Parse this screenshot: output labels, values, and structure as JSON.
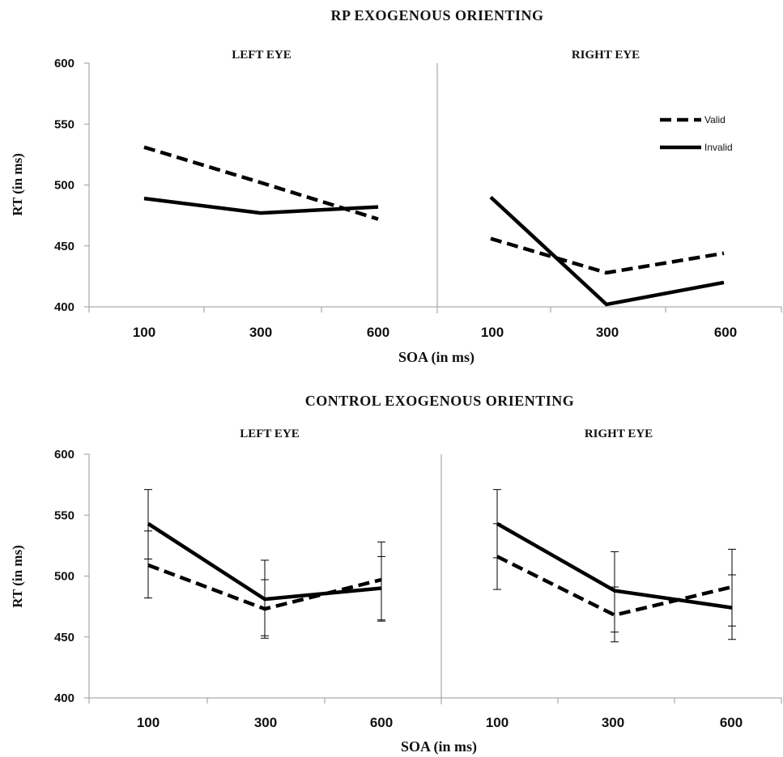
{
  "chart_data": [
    {
      "type": "line",
      "section_title": "RP EXOGENOUS ORIENTING",
      "title": "LEFT EYE",
      "xlabel": "SOA (in ms)",
      "ylabel": "RT (in ms)",
      "categories": [
        "100",
        "300",
        "600"
      ],
      "ylim": [
        400,
        600
      ],
      "yticks": [
        400,
        450,
        500,
        550,
        600
      ],
      "error_bars": false,
      "series": [
        {
          "name": "Valid",
          "style": "dashed",
          "values": [
            531,
            502,
            472
          ]
        },
        {
          "name": "Invalid",
          "style": "solid",
          "values": [
            489,
            477,
            482
          ]
        }
      ]
    },
    {
      "type": "line",
      "title": "RIGHT EYE",
      "categories": [
        "100",
        "300",
        "600"
      ],
      "ylim": [
        400,
        600
      ],
      "error_bars": false,
      "legend": {
        "placement": "top-right",
        "entries": [
          "Valid",
          "Invalid"
        ]
      },
      "series": [
        {
          "name": "Valid",
          "style": "dashed",
          "values": [
            456,
            428,
            444
          ]
        },
        {
          "name": "Invalid",
          "style": "solid",
          "values": [
            490,
            402,
            420
          ]
        }
      ]
    },
    {
      "type": "line",
      "section_title": "CONTROL EXOGENOUS ORIENTING",
      "title": "LEFT EYE",
      "xlabel": "SOA (in ms)",
      "ylabel": "RT (in ms)",
      "categories": [
        "100",
        "300",
        "600"
      ],
      "ylim": [
        400,
        600
      ],
      "yticks": [
        400,
        450,
        500,
        550,
        600
      ],
      "error_bars": true,
      "series": [
        {
          "name": "Valid",
          "style": "dashed",
          "values": [
            509,
            473,
            497
          ],
          "err_low": [
            482,
            449,
            463
          ],
          "err_high": [
            537,
            497,
            528
          ]
        },
        {
          "name": "Invalid",
          "style": "solid",
          "values": [
            543,
            481,
            490
          ],
          "err_low": [
            514,
            451,
            464
          ],
          "err_high": [
            571,
            513,
            516
          ]
        }
      ]
    },
    {
      "type": "line",
      "title": "RIGHT EYE",
      "categories": [
        "100",
        "300",
        "600"
      ],
      "ylim": [
        400,
        600
      ],
      "error_bars": true,
      "series": [
        {
          "name": "Valid",
          "style": "dashed",
          "values": [
            516,
            468,
            491
          ],
          "err_low": [
            489,
            446,
            459
          ],
          "err_high": [
            543,
            491,
            522
          ]
        },
        {
          "name": "Invalid",
          "style": "solid",
          "values": [
            543,
            488,
            474
          ],
          "err_low": [
            515,
            454,
            448
          ],
          "err_high": [
            571,
            520,
            501
          ]
        }
      ]
    }
  ]
}
